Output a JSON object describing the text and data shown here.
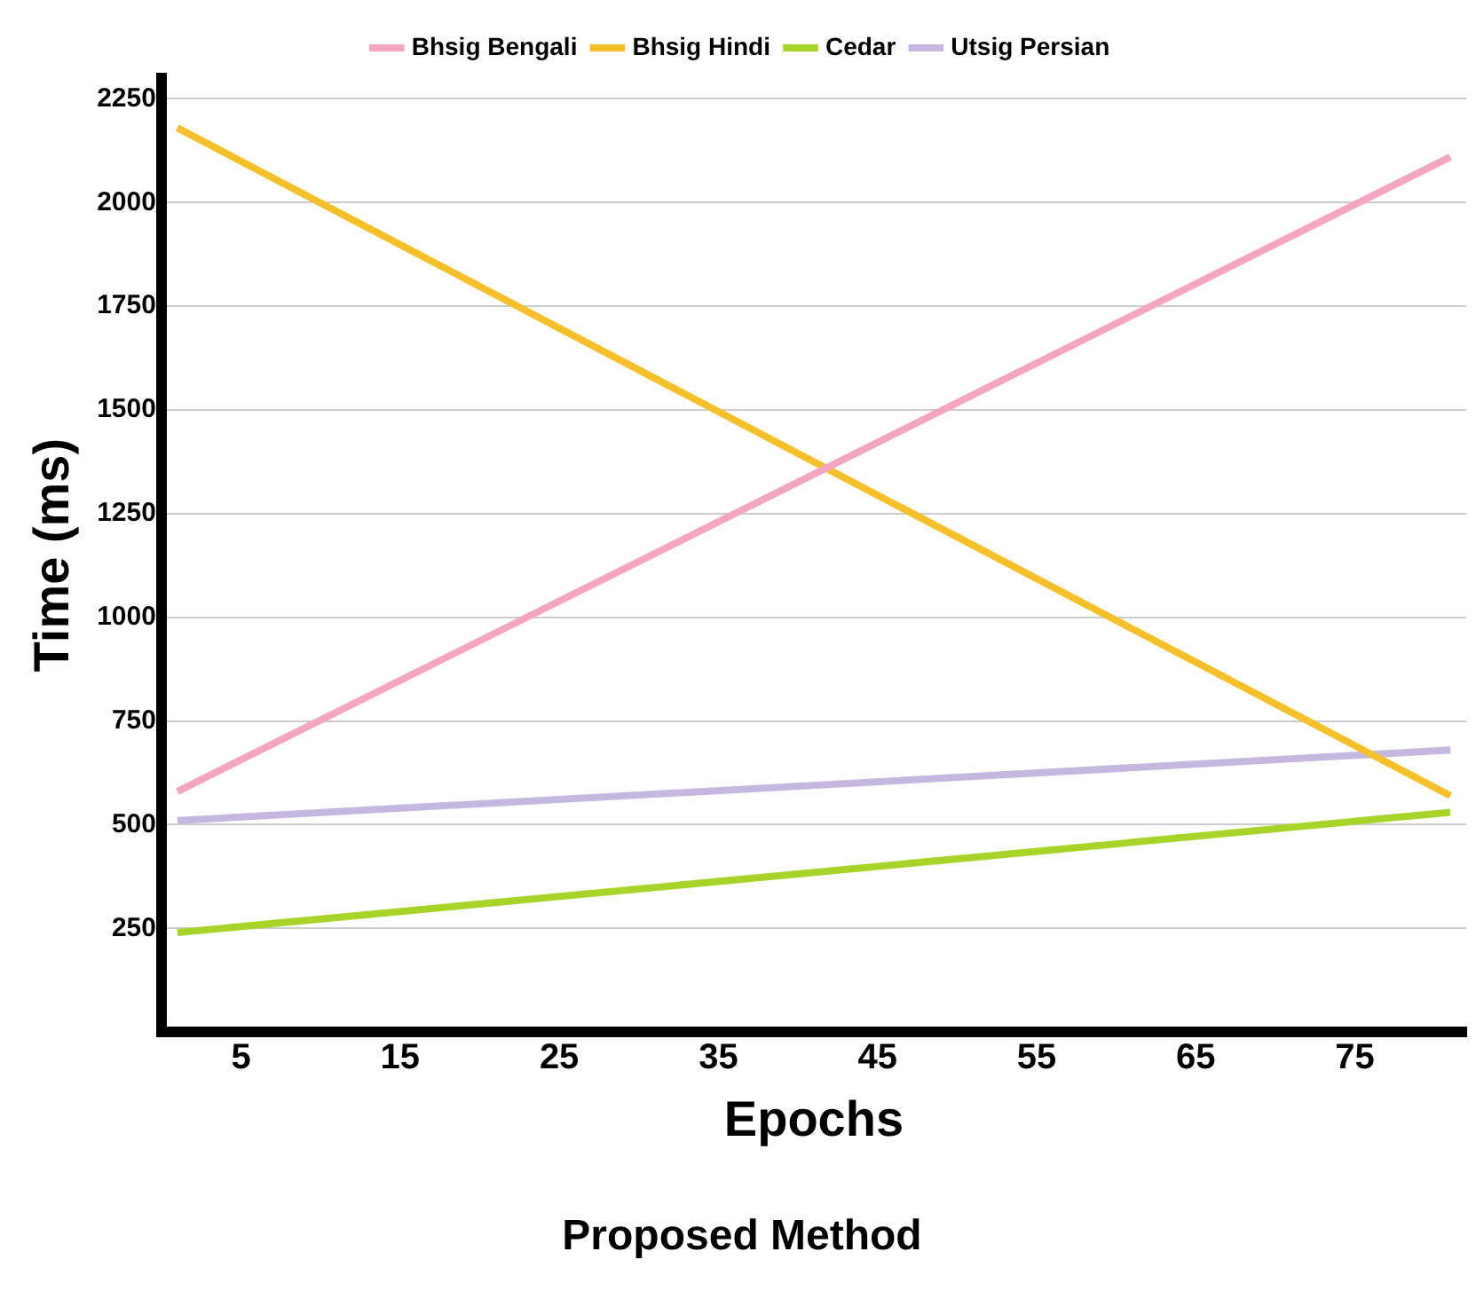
{
  "chart_data": {
    "type": "line",
    "title": "Proposed Method",
    "xlabel": "Epochs",
    "ylabel": "Time (ms)",
    "x": [
      1,
      81
    ],
    "series": [
      {
        "name": "Bhsig Bengali",
        "color": "#f4a6c0",
        "values": [
          580,
          2110
        ]
      },
      {
        "name": "Bhsig Hindi",
        "color": "#f5c02a",
        "values": [
          2180,
          570
        ]
      },
      {
        "name": "Cedar",
        "color": "#a8d42a",
        "values": [
          240,
          530
        ]
      },
      {
        "name": "Utsig Persian",
        "color": "#c4b8e0",
        "values": [
          510,
          680
        ]
      }
    ],
    "xlim": [
      0,
      82
    ],
    "xticks": [
      5,
      15,
      25,
      35,
      45,
      55,
      65,
      75
    ],
    "ylim": [
      0,
      2300
    ],
    "yticks": [
      250,
      500,
      750,
      1000,
      1250,
      1500,
      1750,
      2000,
      2250
    ],
    "grid": "y",
    "legend": "top",
    "marker": "none",
    "line_style": "solid"
  }
}
